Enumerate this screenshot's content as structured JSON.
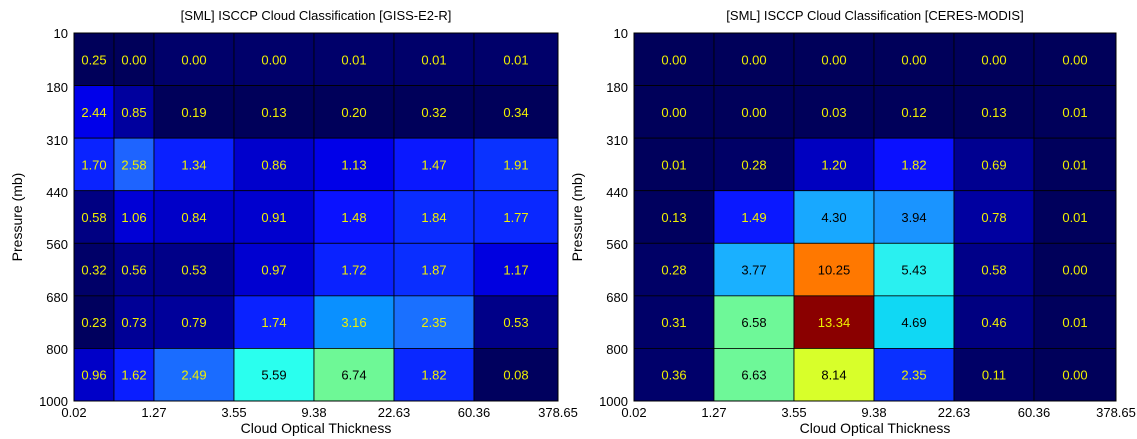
{
  "chart_data": [
    {
      "type": "heatmap",
      "title": "[SML] ISCCP Cloud Classification [GISS-E2-R]",
      "xlabel": "Cloud Optical Thickness",
      "ylabel": "Pressure (mb)",
      "x_ticks": [
        "0.02",
        "1.27",
        "3.55",
        "9.38",
        "22.63",
        "60.36",
        "378.65"
      ],
      "y_ticks": [
        "10",
        "180",
        "310",
        "440",
        "560",
        "680",
        "800",
        "1000"
      ],
      "values": [
        [
          0.25,
          0.0,
          0.0,
          0.0,
          0.01,
          0.01,
          0.01
        ],
        [
          2.44,
          0.85,
          0.19,
          0.13,
          0.2,
          0.32,
          0.34
        ],
        [
          1.7,
          2.58,
          1.34,
          0.86,
          1.13,
          1.47,
          1.91
        ],
        [
          0.58,
          1.06,
          0.84,
          0.91,
          1.48,
          1.84,
          1.77
        ],
        [
          0.32,
          0.56,
          0.53,
          0.97,
          1.72,
          1.87,
          1.17
        ],
        [
          0.23,
          0.73,
          0.79,
          1.74,
          3.16,
          2.35,
          0.53
        ],
        [
          0.96,
          1.62,
          2.49,
          5.59,
          6.74,
          1.82,
          0.08
        ]
      ],
      "colors": [
        [
          "#00005a",
          "#00005a",
          "#00006a",
          "#00006a",
          "#00006a",
          "#00006a",
          "#00006a"
        ],
        [
          "#0000ea",
          "#00009e",
          "#00005a",
          "#00005a",
          "#00005a",
          "#00005a",
          "#00005a"
        ],
        [
          "#0a23ff",
          "#1e64ff",
          "#0a20ff",
          "#0000cc",
          "#0000e8",
          "#0a18ff",
          "#0a32ff"
        ],
        [
          "#000082",
          "#0000d6",
          "#0000c8",
          "#0000ce",
          "#0a12ff",
          "#0a2cff",
          "#0a28ff"
        ],
        [
          "#000068",
          "#00008a",
          "#000088",
          "#0000d0",
          "#0a22ff",
          "#0a2eff",
          "#0000e0"
        ],
        [
          "#00005e",
          "#000096",
          "#00009a",
          "#0a22ff",
          "#0a90ff",
          "#1a70ff",
          "#000088"
        ],
        [
          "#0000c8",
          "#0a1eff",
          "#1a6cff",
          "#2affee",
          "#6ef896",
          "#0a28ff",
          "#00005e"
        ]
      ],
      "text_colors": [
        [
          "#f0f000",
          "#f0f000",
          "#f0f000",
          "#f0f000",
          "#f0f000",
          "#f0f000",
          "#f0f000"
        ],
        [
          "#f0f000",
          "#f0f000",
          "#f0f000",
          "#f0f000",
          "#f0f000",
          "#f0f000",
          "#f0f000"
        ],
        [
          "#f0f000",
          "#f0f000",
          "#f0f000",
          "#f0f000",
          "#f0f000",
          "#f0f000",
          "#f0f000"
        ],
        [
          "#f0f000",
          "#f0f000",
          "#f0f000",
          "#f0f000",
          "#f0f000",
          "#f0f000",
          "#f0f000"
        ],
        [
          "#f0f000",
          "#f0f000",
          "#f0f000",
          "#f0f000",
          "#f0f000",
          "#f0f000",
          "#f0f000"
        ],
        [
          "#f0f000",
          "#f0f000",
          "#f0f000",
          "#f0f000",
          "#f0f000",
          "#f0f000",
          "#f0f000"
        ],
        [
          "#f0f000",
          "#f0f000",
          "#f0f000",
          "#000000",
          "#000000",
          "#f0f000",
          "#f0f000"
        ]
      ]
    },
    {
      "type": "heatmap",
      "title": "[SML] ISCCP Cloud Classification [CERES-MODIS]",
      "xlabel": "Cloud Optical Thickness",
      "ylabel": "Pressure (mb)",
      "x_ticks": [
        "0.02",
        "1.27",
        "3.55",
        "9.38",
        "22.63",
        "60.36",
        "378.65"
      ],
      "y_ticks": [
        "10",
        "180",
        "310",
        "440",
        "560",
        "680",
        "800",
        "1000"
      ],
      "values": [
        [
          0.0,
          0.0,
          0.0,
          0.0,
          0.0,
          0.0
        ],
        [
          0.0,
          0.0,
          0.03,
          0.12,
          0.13,
          0.01
        ],
        [
          0.01,
          0.28,
          1.2,
          1.82,
          0.69,
          0.01
        ],
        [
          0.13,
          1.49,
          4.3,
          3.94,
          0.78,
          0.01
        ],
        [
          0.28,
          3.77,
          10.25,
          5.43,
          0.58,
          0.0
        ],
        [
          0.31,
          6.58,
          13.34,
          4.69,
          0.46,
          0.01
        ],
        [
          0.36,
          6.63,
          8.14,
          2.35,
          0.11,
          0.0
        ]
      ],
      "colors": [
        [
          "#00005a",
          "#00005a",
          "#00005a",
          "#00005a",
          "#00005a",
          "#00005a"
        ],
        [
          "#00005a",
          "#00005a",
          "#00005a",
          "#00005a",
          "#00005a",
          "#00005a"
        ],
        [
          "#00005c",
          "#000066",
          "#0000c0",
          "#0a10ff",
          "#000090",
          "#00005c"
        ],
        [
          "#00005e",
          "#0a18ff",
          "#18a8ff",
          "#1a94ff",
          "#0000a0",
          "#00005c"
        ],
        [
          "#000066",
          "#1ab0ff",
          "#ff7800",
          "#2af0f0",
          "#000088",
          "#00005a"
        ],
        [
          "#000068",
          "#6ef898",
          "#8a0000",
          "#10d8f4",
          "#000080",
          "#00005c"
        ],
        [
          "#00006a",
          "#6ef898",
          "#d8ff2a",
          "#0a30ff",
          "#000066",
          "#00005a"
        ]
      ],
      "text_colors": [
        [
          "#f0f000",
          "#f0f000",
          "#f0f000",
          "#f0f000",
          "#f0f000",
          "#f0f000"
        ],
        [
          "#f0f000",
          "#f0f000",
          "#f0f000",
          "#f0f000",
          "#f0f000",
          "#f0f000"
        ],
        [
          "#f0f000",
          "#f0f000",
          "#f0f000",
          "#f0f000",
          "#f0f000",
          "#f0f000"
        ],
        [
          "#f0f000",
          "#f0f000",
          "#000000",
          "#000000",
          "#f0f000",
          "#f0f000"
        ],
        [
          "#f0f000",
          "#000000",
          "#000000",
          "#000000",
          "#f0f000",
          "#f0f000"
        ],
        [
          "#f0f000",
          "#000000",
          "#f0f000",
          "#000000",
          "#f0f000",
          "#f0f000"
        ],
        [
          "#f0f000",
          "#000000",
          "#000000",
          "#f0f000",
          "#f0f000",
          "#f0f000"
        ]
      ]
    }
  ]
}
